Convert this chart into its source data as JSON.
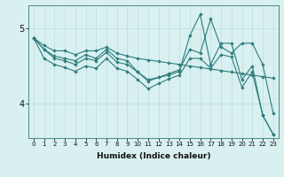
{
  "xlabel": "Humidex (Indice chaleur)",
  "x": [
    0,
    1,
    2,
    3,
    4,
    5,
    6,
    7,
    8,
    9,
    10,
    11,
    12,
    13,
    14,
    15,
    16,
    17,
    18,
    19,
    20,
    21,
    22,
    23
  ],
  "line1": [
    4.87,
    4.77,
    4.7,
    4.7,
    4.65,
    4.7,
    4.7,
    4.75,
    4.67,
    4.63,
    4.6,
    4.58,
    4.56,
    4.54,
    4.52,
    4.5,
    4.48,
    4.46,
    4.44,
    4.42,
    4.4,
    4.38,
    4.36,
    4.34
  ],
  "line2": [
    4.87,
    4.72,
    4.63,
    4.6,
    4.57,
    4.65,
    4.6,
    4.72,
    4.6,
    4.57,
    4.42,
    4.3,
    4.35,
    4.4,
    4.45,
    4.72,
    4.67,
    5.12,
    4.75,
    4.67,
    4.8,
    4.8,
    4.52,
    3.88
  ],
  "line3": [
    4.87,
    4.72,
    4.6,
    4.57,
    4.52,
    4.6,
    4.57,
    4.68,
    4.55,
    4.52,
    4.42,
    4.32,
    4.35,
    4.38,
    4.43,
    4.9,
    5.18,
    4.52,
    4.8,
    4.8,
    4.32,
    4.5,
    3.85,
    3.6
  ],
  "line4": [
    4.87,
    4.6,
    4.52,
    4.48,
    4.43,
    4.5,
    4.47,
    4.6,
    4.47,
    4.43,
    4.32,
    4.2,
    4.27,
    4.33,
    4.38,
    4.6,
    4.6,
    4.47,
    4.65,
    4.62,
    4.22,
    4.42,
    3.85,
    3.6
  ],
  "bg_color": "#d9f0f0",
  "grid_color": "#c0e0e0",
  "line_color": "#2d7d7d",
  "ylim": [
    3.55,
    5.3
  ],
  "yticks": [
    4.0,
    5.0
  ],
  "ytick_labels": [
    "4",
    "5"
  ]
}
